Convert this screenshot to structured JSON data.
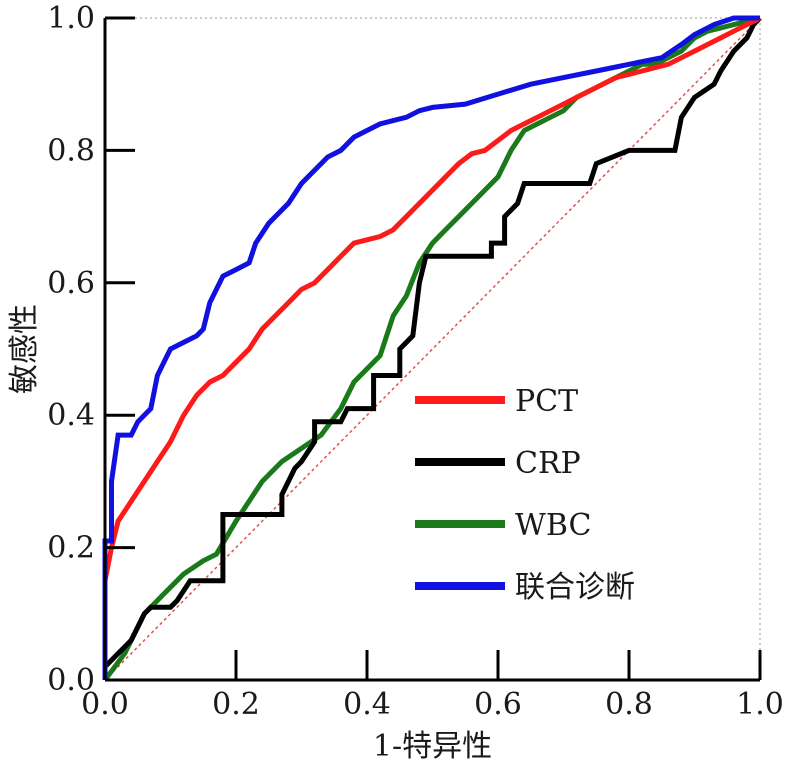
{
  "chart_data": {
    "type": "line",
    "xlabel": "1-特异性",
    "ylabel": "敏感性",
    "xlim": [
      0,
      1
    ],
    "ylim": [
      0,
      1
    ],
    "x_ticks": [
      "0.0",
      "0.2",
      "0.4",
      "0.6",
      "0.8",
      "1.0"
    ],
    "y_ticks": [
      "0.0",
      "0.2",
      "0.4",
      "0.6",
      "0.8",
      "1.0"
    ],
    "legend_position": "center-right",
    "reference_line": {
      "color": "#e05050",
      "style": "dotted"
    },
    "series": [
      {
        "name": "PCT",
        "color": "#ff1a1a",
        "points": [
          [
            0,
            0
          ],
          [
            0,
            0.15
          ],
          [
            0.01,
            0.2
          ],
          [
            0.02,
            0.24
          ],
          [
            0.04,
            0.27
          ],
          [
            0.06,
            0.3
          ],
          [
            0.08,
            0.33
          ],
          [
            0.1,
            0.36
          ],
          [
            0.12,
            0.4
          ],
          [
            0.14,
            0.43
          ],
          [
            0.16,
            0.45
          ],
          [
            0.18,
            0.46
          ],
          [
            0.2,
            0.48
          ],
          [
            0.22,
            0.5
          ],
          [
            0.24,
            0.53
          ],
          [
            0.26,
            0.55
          ],
          [
            0.28,
            0.57
          ],
          [
            0.3,
            0.59
          ],
          [
            0.32,
            0.6
          ],
          [
            0.34,
            0.62
          ],
          [
            0.36,
            0.64
          ],
          [
            0.38,
            0.66
          ],
          [
            0.4,
            0.665
          ],
          [
            0.42,
            0.67
          ],
          [
            0.44,
            0.68
          ],
          [
            0.46,
            0.7
          ],
          [
            0.48,
            0.72
          ],
          [
            0.5,
            0.74
          ],
          [
            0.52,
            0.76
          ],
          [
            0.54,
            0.78
          ],
          [
            0.56,
            0.795
          ],
          [
            0.58,
            0.8
          ],
          [
            0.6,
            0.815
          ],
          [
            0.62,
            0.83
          ],
          [
            0.64,
            0.84
          ],
          [
            0.66,
            0.85
          ],
          [
            0.68,
            0.86
          ],
          [
            0.7,
            0.87
          ],
          [
            0.72,
            0.88
          ],
          [
            0.74,
            0.89
          ],
          [
            0.76,
            0.9
          ],
          [
            0.78,
            0.91
          ],
          [
            0.8,
            0.915
          ],
          [
            0.82,
            0.92
          ],
          [
            0.84,
            0.925
          ],
          [
            0.86,
            0.93
          ],
          [
            0.88,
            0.94
          ],
          [
            0.9,
            0.95
          ],
          [
            0.92,
            0.96
          ],
          [
            0.94,
            0.97
          ],
          [
            0.96,
            0.98
          ],
          [
            0.98,
            0.99
          ],
          [
            1.0,
            1.0
          ]
        ]
      },
      {
        "name": "CRP",
        "color": "#000000",
        "points": [
          [
            0,
            0
          ],
          [
            0,
            0.02
          ],
          [
            0.02,
            0.04
          ],
          [
            0.04,
            0.06
          ],
          [
            0.05,
            0.08
          ],
          [
            0.06,
            0.1
          ],
          [
            0.07,
            0.11
          ],
          [
            0.1,
            0.11
          ],
          [
            0.11,
            0.12
          ],
          [
            0.13,
            0.15
          ],
          [
            0.18,
            0.15
          ],
          [
            0.18,
            0.25
          ],
          [
            0.27,
            0.25
          ],
          [
            0.27,
            0.28
          ],
          [
            0.28,
            0.3
          ],
          [
            0.29,
            0.32
          ],
          [
            0.3,
            0.33
          ],
          [
            0.32,
            0.36
          ],
          [
            0.32,
            0.39
          ],
          [
            0.36,
            0.39
          ],
          [
            0.37,
            0.41
          ],
          [
            0.41,
            0.41
          ],
          [
            0.41,
            0.46
          ],
          [
            0.45,
            0.46
          ],
          [
            0.45,
            0.5
          ],
          [
            0.47,
            0.52
          ],
          [
            0.48,
            0.6
          ],
          [
            0.49,
            0.64
          ],
          [
            0.59,
            0.64
          ],
          [
            0.59,
            0.66
          ],
          [
            0.61,
            0.66
          ],
          [
            0.61,
            0.7
          ],
          [
            0.63,
            0.72
          ],
          [
            0.64,
            0.75
          ],
          [
            0.74,
            0.75
          ],
          [
            0.75,
            0.78
          ],
          [
            0.8,
            0.8
          ],
          [
            0.87,
            0.8
          ],
          [
            0.88,
            0.85
          ],
          [
            0.9,
            0.88
          ],
          [
            0.93,
            0.9
          ],
          [
            0.94,
            0.92
          ],
          [
            0.96,
            0.95
          ],
          [
            0.98,
            0.97
          ],
          [
            0.99,
            0.99
          ],
          [
            1.0,
            1.0
          ]
        ]
      },
      {
        "name": "WBC",
        "color": "#1a7a1a",
        "points": [
          [
            0,
            0
          ],
          [
            0.03,
            0.04
          ],
          [
            0.06,
            0.1
          ],
          [
            0.09,
            0.13
          ],
          [
            0.12,
            0.16
          ],
          [
            0.15,
            0.18
          ],
          [
            0.17,
            0.19
          ],
          [
            0.2,
            0.24
          ],
          [
            0.22,
            0.27
          ],
          [
            0.24,
            0.3
          ],
          [
            0.27,
            0.33
          ],
          [
            0.3,
            0.35
          ],
          [
            0.33,
            0.37
          ],
          [
            0.36,
            0.41
          ],
          [
            0.38,
            0.45
          ],
          [
            0.4,
            0.47
          ],
          [
            0.42,
            0.49
          ],
          [
            0.44,
            0.55
          ],
          [
            0.46,
            0.58
          ],
          [
            0.48,
            0.63
          ],
          [
            0.5,
            0.66
          ],
          [
            0.52,
            0.68
          ],
          [
            0.54,
            0.7
          ],
          [
            0.56,
            0.72
          ],
          [
            0.58,
            0.74
          ],
          [
            0.6,
            0.76
          ],
          [
            0.62,
            0.8
          ],
          [
            0.64,
            0.83
          ],
          [
            0.66,
            0.84
          ],
          [
            0.68,
            0.85
          ],
          [
            0.7,
            0.86
          ],
          [
            0.72,
            0.88
          ],
          [
            0.74,
            0.89
          ],
          [
            0.76,
            0.9
          ],
          [
            0.78,
            0.91
          ],
          [
            0.8,
            0.92
          ],
          [
            0.82,
            0.93
          ],
          [
            0.84,
            0.93
          ],
          [
            0.86,
            0.94
          ],
          [
            0.88,
            0.95
          ],
          [
            0.9,
            0.97
          ],
          [
            0.92,
            0.98
          ],
          [
            0.94,
            0.985
          ],
          [
            0.96,
            0.99
          ],
          [
            0.98,
            0.995
          ],
          [
            1.0,
            1.0
          ]
        ]
      },
      {
        "name": "联合诊断",
        "color": "#1010e0",
        "points": [
          [
            0,
            0
          ],
          [
            0,
            0.21
          ],
          [
            0.01,
            0.21
          ],
          [
            0.01,
            0.3
          ],
          [
            0.02,
            0.37
          ],
          [
            0.04,
            0.37
          ],
          [
            0.05,
            0.39
          ],
          [
            0.07,
            0.41
          ],
          [
            0.08,
            0.46
          ],
          [
            0.09,
            0.48
          ],
          [
            0.1,
            0.5
          ],
          [
            0.12,
            0.51
          ],
          [
            0.14,
            0.52
          ],
          [
            0.15,
            0.53
          ],
          [
            0.16,
            0.57
          ],
          [
            0.17,
            0.59
          ],
          [
            0.18,
            0.61
          ],
          [
            0.2,
            0.62
          ],
          [
            0.22,
            0.63
          ],
          [
            0.23,
            0.66
          ],
          [
            0.25,
            0.69
          ],
          [
            0.26,
            0.7
          ],
          [
            0.28,
            0.72
          ],
          [
            0.3,
            0.75
          ],
          [
            0.32,
            0.77
          ],
          [
            0.34,
            0.79
          ],
          [
            0.36,
            0.8
          ],
          [
            0.38,
            0.82
          ],
          [
            0.4,
            0.83
          ],
          [
            0.42,
            0.84
          ],
          [
            0.44,
            0.845
          ],
          [
            0.46,
            0.85
          ],
          [
            0.48,
            0.86
          ],
          [
            0.5,
            0.865
          ],
          [
            0.55,
            0.87
          ],
          [
            0.6,
            0.885
          ],
          [
            0.65,
            0.9
          ],
          [
            0.7,
            0.91
          ],
          [
            0.75,
            0.92
          ],
          [
            0.8,
            0.93
          ],
          [
            0.85,
            0.94
          ],
          [
            0.88,
            0.96
          ],
          [
            0.9,
            0.975
          ],
          [
            0.93,
            0.99
          ],
          [
            0.96,
            1.0
          ],
          [
            1.0,
            1.0
          ]
        ]
      }
    ]
  }
}
